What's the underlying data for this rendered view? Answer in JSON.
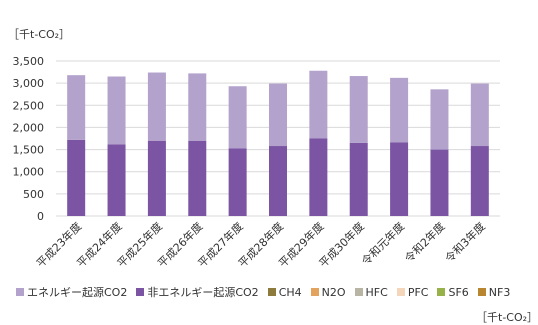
{
  "unit_label_top": "［千t-CO₂］",
  "unit_label_bottom": "［千t-CO₂］",
  "chart_data": {
    "type": "bar",
    "stacked": true,
    "categories": [
      "平成23年度",
      "平成24年度",
      "平成25年度",
      "平成26年度",
      "平成27年度",
      "平成28年度",
      "平成29年度",
      "平成30年度",
      "令和元年度",
      "令和2年度",
      "令和3年度"
    ],
    "ylim": [
      0,
      3500
    ],
    "yticks": [
      0,
      500,
      1000,
      1500,
      2000,
      2500,
      3000,
      3500
    ],
    "ytick_labels": [
      "0",
      "500",
      "1,000",
      "1,500",
      "2,000",
      "2,500",
      "3,000",
      "3,500"
    ],
    "grid": true,
    "legend_position": "bottom",
    "series": [
      {
        "name": "非エネルギー起源CO2",
        "color": "#7b55a3",
        "values": [
          1720,
          1620,
          1700,
          1700,
          1530,
          1580,
          1750,
          1650,
          1660,
          1500,
          1580
        ]
      },
      {
        "name": "エネルギー起源CO2",
        "color": "#b3a2cb",
        "values": [
          1460,
          1530,
          1540,
          1520,
          1400,
          1410,
          1530,
          1510,
          1460,
          1360,
          1410
        ]
      },
      {
        "name": "CH4",
        "color": "#8c7b3c",
        "values": [
          0,
          0,
          0,
          0,
          0,
          0,
          0,
          0,
          0,
          0,
          0
        ]
      },
      {
        "name": "N2O",
        "color": "#e2a35f",
        "values": [
          0,
          0,
          0,
          0,
          0,
          0,
          0,
          0,
          0,
          0,
          0
        ]
      },
      {
        "name": "HFC",
        "color": "#b9b5a4",
        "values": [
          0,
          0,
          0,
          0,
          0,
          0,
          0,
          0,
          0,
          0,
          0
        ]
      },
      {
        "name": "PFC",
        "color": "#f4d7bb",
        "values": [
          0,
          0,
          0,
          0,
          0,
          0,
          0,
          0,
          0,
          0,
          0
        ]
      },
      {
        "name": "SF6",
        "color": "#98b24a",
        "values": [
          0,
          0,
          0,
          0,
          0,
          0,
          0,
          0,
          0,
          0,
          0
        ]
      },
      {
        "name": "NF3",
        "color": "#b8862f",
        "values": [
          0,
          0,
          0,
          0,
          0,
          0,
          0,
          0,
          0,
          0,
          0
        ]
      }
    ],
    "legend_order": [
      "エネルギー起源CO2",
      "非エネルギー起源CO2",
      "CH4",
      "N2O",
      "HFC",
      "PFC",
      "SF6",
      "NF3"
    ]
  }
}
